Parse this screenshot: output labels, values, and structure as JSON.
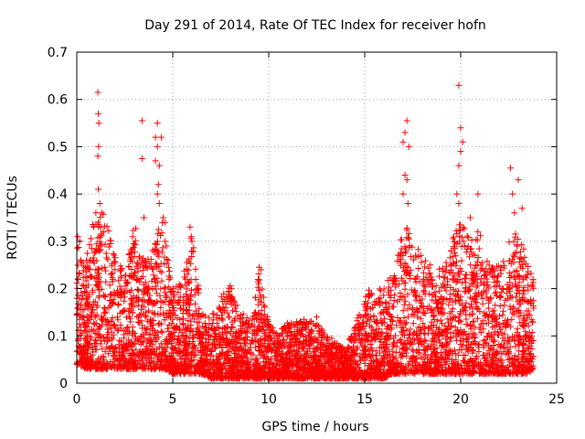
{
  "chart_data": {
    "type": "scatter",
    "title": "Day 291 of 2014, Rate Of TEC Index for receiver hofn",
    "xlabel": "GPS time / hours",
    "ylabel": "ROTI / TECUs",
    "xlim": [
      0,
      25
    ],
    "ylim": [
      0,
      0.7
    ],
    "x_ticks": [
      0,
      5,
      10,
      15,
      20,
      25
    ],
    "x_tick_labels": [
      "0",
      "5",
      "10",
      "15",
      "20",
      "25"
    ],
    "y_ticks": [
      0,
      0.1,
      0.2,
      0.3,
      0.4,
      0.5,
      0.6,
      0.7
    ],
    "y_tick_labels": [
      "0",
      "0.1",
      "0.2",
      "0.3",
      "0.4",
      "0.5",
      "0.6",
      "0.7"
    ],
    "grid": true,
    "marker": "+",
    "color": "#ff0000",
    "envelope_description": "dense ROTI points spanning 0 to 23.8 h",
    "envelope": [
      [
        0.0,
        0.04,
        0.3
      ],
      [
        0.5,
        0.03,
        0.27
      ],
      [
        1.0,
        0.03,
        0.38
      ],
      [
        1.5,
        0.03,
        0.36
      ],
      [
        2.0,
        0.03,
        0.27
      ],
      [
        2.5,
        0.03,
        0.24
      ],
      [
        3.0,
        0.03,
        0.35
      ],
      [
        3.5,
        0.03,
        0.26
      ],
      [
        4.0,
        0.03,
        0.3
      ],
      [
        4.5,
        0.03,
        0.35
      ],
      [
        5.0,
        0.02,
        0.2
      ],
      [
        5.5,
        0.02,
        0.22
      ],
      [
        6.0,
        0.02,
        0.32
      ],
      [
        6.5,
        0.02,
        0.15
      ],
      [
        7.0,
        0.01,
        0.14
      ],
      [
        7.5,
        0.01,
        0.18
      ],
      [
        8.0,
        0.01,
        0.21
      ],
      [
        8.5,
        0.01,
        0.15
      ],
      [
        9.0,
        0.01,
        0.14
      ],
      [
        9.5,
        0.01,
        0.24
      ],
      [
        10.0,
        0.01,
        0.13
      ],
      [
        10.5,
        0.01,
        0.11
      ],
      [
        11.0,
        0.01,
        0.13
      ],
      [
        11.5,
        0.01,
        0.13
      ],
      [
        12.0,
        0.01,
        0.14
      ],
      [
        12.5,
        0.01,
        0.13
      ],
      [
        13.0,
        0.01,
        0.1
      ],
      [
        13.5,
        0.01,
        0.1
      ],
      [
        14.0,
        0.01,
        0.07
      ],
      [
        14.5,
        0.01,
        0.13
      ],
      [
        15.0,
        0.01,
        0.2
      ],
      [
        15.5,
        0.01,
        0.21
      ],
      [
        16.0,
        0.01,
        0.2
      ],
      [
        16.5,
        0.02,
        0.24
      ],
      [
        17.0,
        0.02,
        0.36
      ],
      [
        17.5,
        0.02,
        0.3
      ],
      [
        18.0,
        0.02,
        0.27
      ],
      [
        18.5,
        0.02,
        0.26
      ],
      [
        19.0,
        0.02,
        0.24
      ],
      [
        19.5,
        0.02,
        0.3
      ],
      [
        20.0,
        0.02,
        0.35
      ],
      [
        20.5,
        0.02,
        0.3
      ],
      [
        21.0,
        0.02,
        0.34
      ],
      [
        21.5,
        0.02,
        0.25
      ],
      [
        22.0,
        0.02,
        0.25
      ],
      [
        22.5,
        0.02,
        0.3
      ],
      [
        23.0,
        0.02,
        0.33
      ],
      [
        23.5,
        0.02,
        0.25
      ],
      [
        23.8,
        0.03,
        0.22
      ]
    ],
    "spikes": [
      {
        "x": 0.05,
        "y": 0.31
      },
      {
        "x": 0.15,
        "y": 0.3
      },
      {
        "x": 1.1,
        "y": 0.615
      },
      {
        "x": 1.12,
        "y": 0.57
      },
      {
        "x": 1.15,
        "y": 0.55
      },
      {
        "x": 1.14,
        "y": 0.5
      },
      {
        "x": 1.1,
        "y": 0.48
      },
      {
        "x": 1.12,
        "y": 0.41
      },
      {
        "x": 1.2,
        "y": 0.38
      },
      {
        "x": 1.3,
        "y": 0.36
      },
      {
        "x": 3.4,
        "y": 0.555
      },
      {
        "x": 3.4,
        "y": 0.475
      },
      {
        "x": 3.5,
        "y": 0.35
      },
      {
        "x": 4.2,
        "y": 0.55
      },
      {
        "x": 4.1,
        "y": 0.52
      },
      {
        "x": 4.4,
        "y": 0.52
      },
      {
        "x": 4.2,
        "y": 0.5
      },
      {
        "x": 4.1,
        "y": 0.47
      },
      {
        "x": 4.3,
        "y": 0.46
      },
      {
        "x": 4.25,
        "y": 0.42
      },
      {
        "x": 4.2,
        "y": 0.4
      },
      {
        "x": 4.3,
        "y": 0.38
      },
      {
        "x": 4.5,
        "y": 0.35
      },
      {
        "x": 4.6,
        "y": 0.34
      },
      {
        "x": 5.9,
        "y": 0.33
      },
      {
        "x": 6.0,
        "y": 0.3
      },
      {
        "x": 9.5,
        "y": 0.245
      },
      {
        "x": 9.6,
        "y": 0.24
      },
      {
        "x": 12.5,
        "y": 0.14
      },
      {
        "x": 17.2,
        "y": 0.555
      },
      {
        "x": 17.1,
        "y": 0.53
      },
      {
        "x": 17.0,
        "y": 0.51
      },
      {
        "x": 17.3,
        "y": 0.5
      },
      {
        "x": 17.1,
        "y": 0.44
      },
      {
        "x": 17.2,
        "y": 0.43
      },
      {
        "x": 17.0,
        "y": 0.4
      },
      {
        "x": 17.25,
        "y": 0.38
      },
      {
        "x": 19.9,
        "y": 0.63
      },
      {
        "x": 20.0,
        "y": 0.54
      },
      {
        "x": 20.1,
        "y": 0.51
      },
      {
        "x": 20.0,
        "y": 0.49
      },
      {
        "x": 19.9,
        "y": 0.46
      },
      {
        "x": 19.8,
        "y": 0.4
      },
      {
        "x": 19.9,
        "y": 0.38
      },
      {
        "x": 20.5,
        "y": 0.35
      },
      {
        "x": 20.9,
        "y": 0.4
      },
      {
        "x": 22.6,
        "y": 0.455
      },
      {
        "x": 23.0,
        "y": 0.43
      },
      {
        "x": 22.7,
        "y": 0.4
      },
      {
        "x": 22.8,
        "y": 0.36
      },
      {
        "x": 23.2,
        "y": 0.37
      }
    ]
  }
}
